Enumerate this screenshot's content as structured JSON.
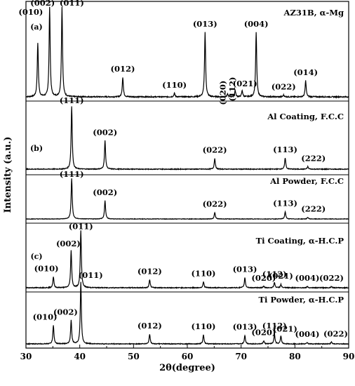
{
  "chart_data": {
    "type": "line",
    "xlabel": "2θ(degree)",
    "ylabel": "Intensity (a.u.)",
    "xlim": [
      30,
      90
    ],
    "x_ticks": [
      "30",
      "40",
      "50",
      "60",
      "70",
      "80",
      "90"
    ],
    "panels": [
      {
        "label": "(a)",
        "series_index": 0
      },
      {
        "label": "(b)",
        "series_index": 1
      },
      {
        "label": "(c)",
        "series_index": 3
      }
    ],
    "series": [
      {
        "name": "AZ31B, α-Mg",
        "peaks": [
          {
            "x": 32.2,
            "h": 0.6,
            "label": "(010)"
          },
          {
            "x": 34.4,
            "h": 1.0,
            "label": "(002)"
          },
          {
            "x": 36.7,
            "h": 1.0,
            "label": "(011)"
          },
          {
            "x": 48.0,
            "h": 0.22,
            "label": "(012)"
          },
          {
            "x": 57.6,
            "h": 0.04,
            "label": "(110)"
          },
          {
            "x": 63.3,
            "h": 0.72,
            "label": "(013)"
          },
          {
            "x": 67.5,
            "h": 0.03,
            "label": "(020)"
          },
          {
            "x": 68.9,
            "h": 0.07,
            "label": "(112)"
          },
          {
            "x": 70.2,
            "h": 0.07,
            "label": "(021)"
          },
          {
            "x": 72.8,
            "h": 0.72,
            "label": "(004)"
          },
          {
            "x": 77.9,
            "h": 0.02,
            "label": "(022)"
          },
          {
            "x": 82.0,
            "h": 0.18,
            "label": "(014)"
          }
        ]
      },
      {
        "name": "Al Coating, F.C.C",
        "peaks": [
          {
            "x": 38.5,
            "h": 1.0,
            "label": "(111)"
          },
          {
            "x": 44.7,
            "h": 0.45,
            "label": "(002)"
          },
          {
            "x": 65.1,
            "h": 0.17,
            "label": "(022)"
          },
          {
            "x": 78.2,
            "h": 0.18,
            "label": "(113)"
          },
          {
            "x": 82.4,
            "h": 0.04,
            "label": "(222)"
          }
        ]
      },
      {
        "name": "Al Powder, F.C.C",
        "peaks": [
          {
            "x": 38.5,
            "h": 1.0,
            "label": "(111)"
          },
          {
            "x": 44.7,
            "h": 0.45,
            "label": "(002)"
          },
          {
            "x": 65.1,
            "h": 0.16,
            "label": "(022)"
          },
          {
            "x": 78.2,
            "h": 0.18,
            "label": "(113)"
          },
          {
            "x": 82.4,
            "h": 0.04,
            "label": "(222)"
          }
        ]
      },
      {
        "name": "Ti Coating, α-H.C.P",
        "peaks": [
          {
            "x": 35.1,
            "h": 0.16,
            "label": "(010)"
          },
          {
            "x": 38.4,
            "h": 0.55,
            "label": "(002)"
          },
          {
            "x": 40.2,
            "h": 0.85,
            "label": "(011)"
          },
          {
            "x": 53.0,
            "h": 0.12,
            "label": "(012)"
          },
          {
            "x": 63.0,
            "h": 0.09,
            "label": "(110)"
          },
          {
            "x": 70.7,
            "h": 0.15,
            "label": "(013)"
          },
          {
            "x": 74.2,
            "h": 0.02,
            "label": "(020)"
          },
          {
            "x": 76.2,
            "h": 0.08,
            "label": "(112)"
          },
          {
            "x": 77.4,
            "h": 0.05,
            "label": "(021)"
          },
          {
            "x": 82.3,
            "h": 0.02,
            "label": "(004)"
          },
          {
            "x": 86.8,
            "h": 0.02,
            "label": "(022)"
          }
        ]
      },
      {
        "name": "Ti Powder, α-H.C.P",
        "peaks": [
          {
            "x": 35.1,
            "h": 0.3,
            "label": "(010)"
          },
          {
            "x": 38.4,
            "h": 0.38,
            "label": "(002)"
          },
          {
            "x": 40.2,
            "h": 1.0,
            "label": "(011)"
          },
          {
            "x": 53.0,
            "h": 0.16,
            "label": "(012)"
          },
          {
            "x": 63.0,
            "h": 0.15,
            "label": "(110)"
          },
          {
            "x": 70.7,
            "h": 0.14,
            "label": "(013)"
          },
          {
            "x": 74.2,
            "h": 0.05,
            "label": "(020)"
          },
          {
            "x": 76.2,
            "h": 0.16,
            "label": "(112)"
          },
          {
            "x": 77.4,
            "h": 0.13,
            "label": "(021)"
          },
          {
            "x": 82.3,
            "h": 0.02,
            "label": "(004)"
          },
          {
            "x": 86.8,
            "h": 0.03,
            "label": "(022)"
          }
        ]
      }
    ]
  }
}
